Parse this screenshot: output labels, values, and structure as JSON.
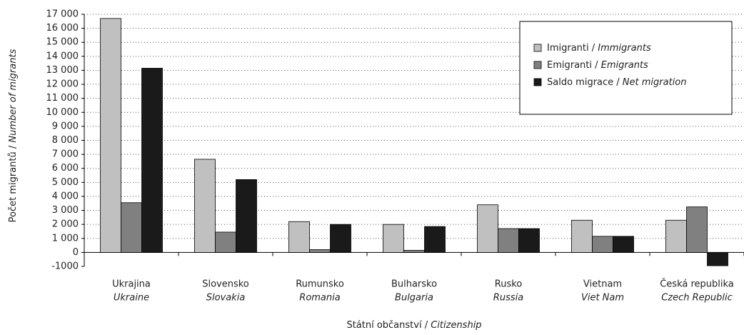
{
  "chart_data": {
    "type": "bar",
    "categories": [
      "Ukrajina",
      "Slovensko",
      "Rumunsko",
      "Bulharsko",
      "Rusko",
      "Vietnam",
      "Česká republika"
    ],
    "categories_en": [
      "Ukraine",
      "Slovakia",
      "Romania",
      "Bulgaria",
      "Russia",
      "Viet Nam",
      "Czech Republic"
    ],
    "series": [
      {
        "name": "Imigranti / Immigrants",
        "color": "#c0c0c0",
        "values": [
          16700,
          6650,
          2200,
          2000,
          3400,
          2300,
          2300
        ]
      },
      {
        "name": "Emigranti / Emigrants",
        "color": "#808080",
        "values": [
          3550,
          1450,
          200,
          150,
          1700,
          1150,
          3250
        ]
      },
      {
        "name": "Saldo migrace / Net migration",
        "color": "#1a1a1a",
        "values": [
          13150,
          5200,
          2000,
          1850,
          1700,
          1150,
          -950
        ]
      }
    ],
    "ylabel": "Počet migrantů / Number of migrants",
    "xlabel": "Státní občanství / Citizenship",
    "ylim": [
      -1000,
      17000
    ],
    "yticks": [
      -1000,
      0,
      {
        "value": 1000,
        "label": "1 000"
      },
      {
        "value": 2000,
        "label": "2 000"
      },
      {
        "value": 3000,
        "label": "3 000"
      },
      {
        "value": 4000,
        "label": "4 000"
      },
      {
        "value": 5000,
        "label": "5 000"
      },
      {
        "value": 6000,
        "label": "6 000"
      },
      {
        "value": 7000,
        "label": "7 000"
      },
      {
        "value": 8000,
        "label": "8 000"
      },
      {
        "value": 9000,
        "label": "9 000"
      },
      {
        "value": 10000,
        "label": "10 000"
      },
      {
        "value": 11000,
        "label": "11 000"
      },
      {
        "value": 12000,
        "label": "12 000"
      },
      {
        "value": 13000,
        "label": "13 000"
      },
      {
        "value": 14000,
        "label": "14 000"
      },
      {
        "value": 15000,
        "label": "15 000"
      },
      {
        "value": 16000,
        "label": "16 000"
      },
      {
        "value": 17000,
        "label": "17 000"
      }
    ],
    "grid": true,
    "legend": "top-right"
  }
}
